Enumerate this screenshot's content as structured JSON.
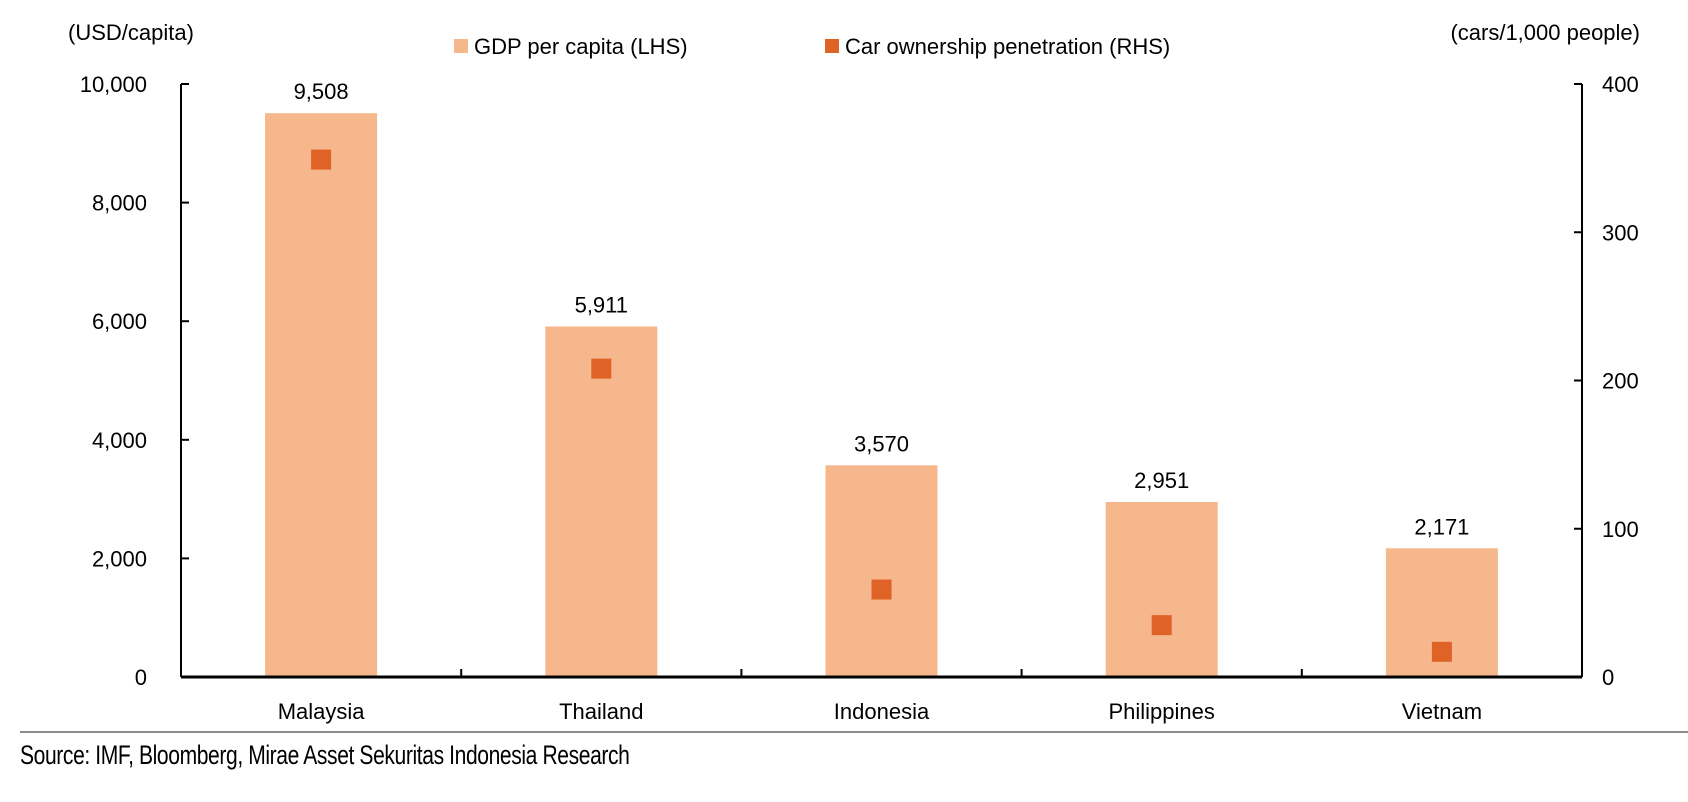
{
  "chart_data": {
    "type": "bar",
    "categories": [
      "Malaysia",
      "Thailand",
      "Indonesia",
      "Philippines",
      "Vietnam"
    ],
    "series": [
      {
        "name": "GDP per capita (LHS)",
        "type": "bar",
        "axis": "left",
        "values": [
          9508,
          5911,
          3570,
          2951,
          2171
        ],
        "labels": [
          "9,508",
          "5,911",
          "3,570",
          "2,951",
          "2,171"
        ],
        "color": "#F6B78C"
      },
      {
        "name": "Car ownership penetration (RHS)",
        "type": "scatter",
        "marker": "square",
        "axis": "right",
        "values": [
          349,
          208,
          59,
          35,
          17
        ],
        "color": "#DF6226"
      }
    ],
    "left_axis": {
      "label": "(USD/capita)",
      "ylim": [
        0,
        10000
      ],
      "ticks": [
        "0",
        "2,000",
        "4,000",
        "6,000",
        "8,000",
        "10,000"
      ],
      "tick_values": [
        0,
        2000,
        4000,
        6000,
        8000,
        10000
      ]
    },
    "right_axis": {
      "label": "(cars/1,000 people)",
      "ylim": [
        0,
        400
      ],
      "ticks": [
        "0",
        "100",
        "200",
        "300",
        "400"
      ],
      "tick_values": [
        0,
        100,
        200,
        300,
        400
      ]
    },
    "grid": false,
    "legend": "top-center"
  },
  "source": "Source: IMF, Bloomberg, Mirae Asset Sekuritas Indonesia Research"
}
